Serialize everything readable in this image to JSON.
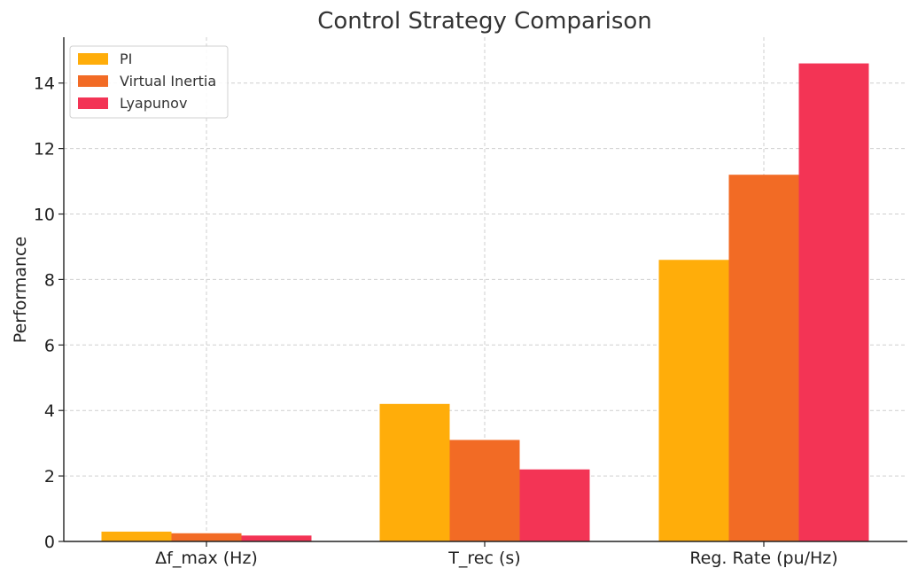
{
  "chart_data": {
    "type": "bar",
    "title": "Control Strategy Comparison",
    "xlabel": "",
    "ylabel": "Performance",
    "categories": [
      "Δf_max (Hz)",
      "T_rec (s)",
      "Reg. Rate (pu/Hz)"
    ],
    "series": [
      {
        "name": "PI",
        "color": "#FFAD0A",
        "values": [
          0.3,
          4.2,
          8.6
        ]
      },
      {
        "name": "Virtual Inertia",
        "color": "#F26B25",
        "values": [
          0.25,
          3.1,
          11.2
        ]
      },
      {
        "name": "Lyapunov",
        "color": "#F33455",
        "values": [
          0.18,
          2.2,
          14.6
        ]
      }
    ],
    "ylim": [
      0,
      15.4
    ],
    "yticks": [
      0,
      2,
      4,
      6,
      8,
      10,
      12,
      14
    ],
    "grid": true,
    "legend_position": "top-left"
  }
}
